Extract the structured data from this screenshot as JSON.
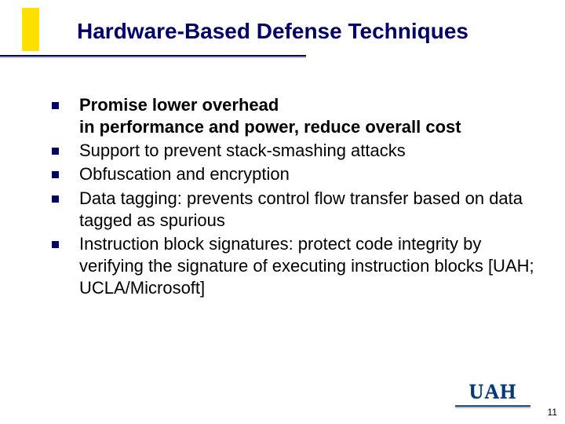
{
  "title": "Hardware-Based Defense Techniques",
  "bullets": [
    {
      "bold": "Promise lower overhead",
      "rest": "in performance and power, reduce overall cost"
    },
    {
      "bold": "",
      "rest": "Support to prevent stack-smashing attacks"
    },
    {
      "bold": "",
      "rest": "Obfuscation and encryption"
    },
    {
      "bold": "",
      "rest": "Data tagging: prevents control flow transfer based on data tagged as spurious"
    },
    {
      "bold": "",
      "rest": "Instruction block signatures: protect code integrity by verifying the signature of executing instruction blocks [UAH; UCLA/Microsoft]"
    }
  ],
  "logo_text": "UAH",
  "page_number": "11",
  "colors": {
    "accent_yellow": "#fee000",
    "title_navy": "#000066",
    "bullet_navy": "#000066",
    "logo_navy": "#003a78",
    "background": "#ffffff"
  }
}
